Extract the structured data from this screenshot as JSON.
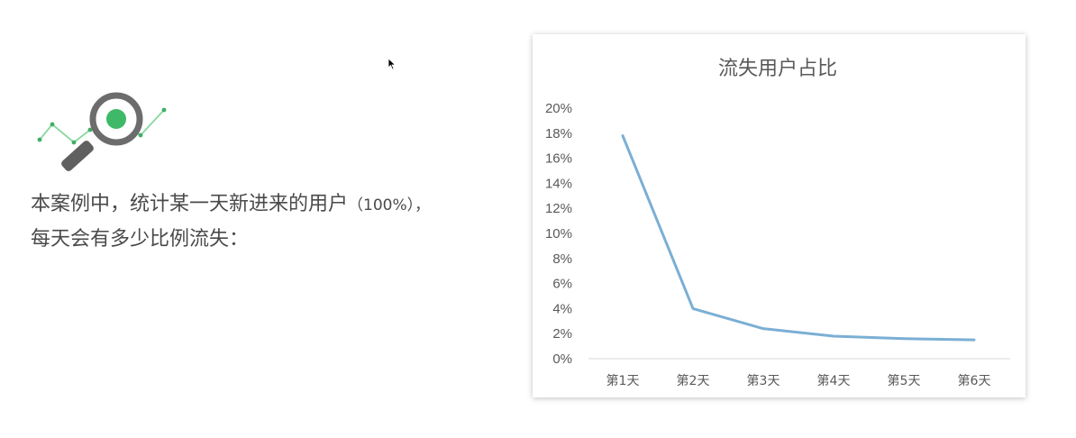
{
  "description": {
    "line1_before": "本案例中，统计某一天新进来的用户",
    "line1_open": "（",
    "line1_pct": "100%",
    "line1_close": "），",
    "line2": "每天会有多少比例流失："
  },
  "chart_data": {
    "type": "line",
    "title": "流失用户占比",
    "categories": [
      "第1天",
      "第2天",
      "第3天",
      "第4天",
      "第5天",
      "第6天"
    ],
    "series": [
      {
        "values": [
          17.8,
          4.0,
          2.4,
          1.8,
          1.6,
          1.5
        ]
      }
    ],
    "ylim": [
      0,
      20
    ],
    "yticks": [
      "0%",
      "2%",
      "4%",
      "6%",
      "8%",
      "10%",
      "12%",
      "14%",
      "16%",
      "18%",
      "20%"
    ],
    "ytick_values": [
      0,
      2,
      4,
      6,
      8,
      10,
      12,
      14,
      16,
      18,
      20
    ],
    "line_color": "#7bafd4",
    "grid": false,
    "legend": "none"
  },
  "icons": {
    "illustration": "magnifier-trend-icon",
    "cursor": "mouse-cursor-icon"
  }
}
